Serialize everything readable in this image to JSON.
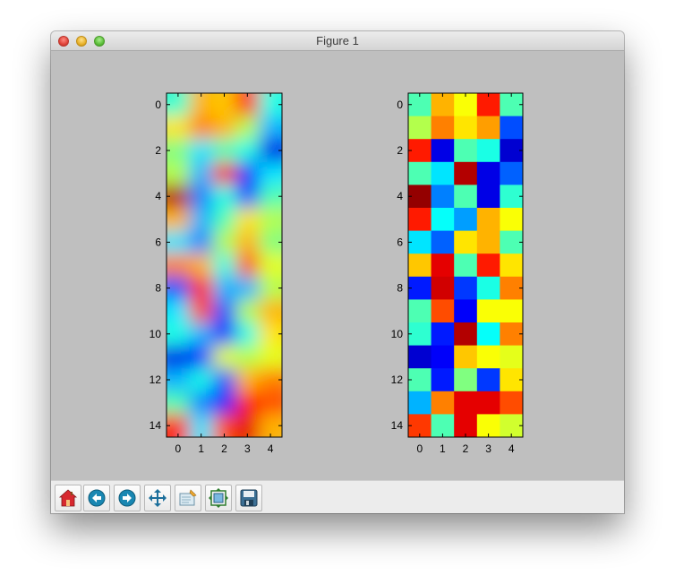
{
  "window": {
    "title": "Figure 1"
  },
  "toolbar": {
    "buttons": [
      {
        "icon": "home-icon"
      },
      {
        "icon": "back-arrow-icon"
      },
      {
        "icon": "forward-arrow-icon"
      },
      {
        "icon": "pan-icon"
      },
      {
        "icon": "zoom-rect-icon"
      },
      {
        "icon": "configure-subplots-icon"
      },
      {
        "icon": "save-icon"
      }
    ]
  },
  "colors": {
    "figure_bg": "#bfbfbf",
    "colormap": "jet"
  },
  "chart_data": [
    {
      "type": "heatmap",
      "interpolation": "smooth",
      "colormap": "jet",
      "x_ticks": [
        "0",
        "1",
        "2",
        "3",
        "4"
      ],
      "y_ticks": [
        "0",
        "2",
        "4",
        "6",
        "8",
        "10",
        "12",
        "14"
      ],
      "values": [
        [
          0.42,
          0.7,
          0.68,
          0.85,
          0.4
        ],
        [
          0.65,
          0.75,
          0.7,
          0.55,
          0.3
        ],
        [
          0.5,
          0.35,
          0.45,
          0.4,
          0.1
        ],
        [
          0.55,
          0.3,
          0.85,
          0.15,
          0.35
        ],
        [
          0.95,
          0.25,
          0.4,
          0.2,
          0.45
        ],
        [
          0.7,
          0.3,
          0.45,
          0.65,
          0.55
        ],
        [
          0.35,
          0.25,
          0.55,
          0.7,
          0.5
        ],
        [
          0.75,
          0.7,
          0.4,
          0.8,
          0.6
        ],
        [
          0.2,
          0.85,
          0.3,
          0.3,
          0.55
        ],
        [
          0.35,
          0.8,
          0.2,
          0.55,
          0.7
        ],
        [
          0.4,
          0.3,
          0.15,
          0.4,
          0.65
        ],
        [
          0.1,
          0.15,
          0.6,
          0.55,
          0.6
        ],
        [
          0.3,
          0.4,
          0.2,
          0.7,
          0.75
        ],
        [
          0.45,
          0.25,
          0.15,
          0.85,
          0.8
        ],
        [
          0.85,
          0.35,
          0.8,
          0.9,
          0.7
        ]
      ]
    },
    {
      "type": "heatmap",
      "interpolation": "nearest",
      "colormap": "jet",
      "x_ticks": [
        "0",
        "1",
        "2",
        "3",
        "4"
      ],
      "y_ticks": [
        "0",
        "2",
        "4",
        "6",
        "8",
        "10",
        "12",
        "14"
      ],
      "values": [
        [
          0.45,
          0.7,
          0.62,
          0.85,
          0.45
        ],
        [
          0.55,
          0.75,
          0.65,
          0.72,
          0.2
        ],
        [
          0.85,
          0.1,
          0.45,
          0.4,
          0.08
        ],
        [
          0.45,
          0.35,
          0.95,
          0.1,
          0.22
        ],
        [
          0.98,
          0.25,
          0.45,
          0.1,
          0.42
        ],
        [
          0.85,
          0.38,
          0.28,
          0.7,
          0.62
        ],
        [
          0.35,
          0.22,
          0.65,
          0.7,
          0.45
        ],
        [
          0.68,
          0.9,
          0.45,
          0.85,
          0.65
        ],
        [
          0.15,
          0.92,
          0.18,
          0.4,
          0.75
        ],
        [
          0.45,
          0.8,
          0.12,
          0.62,
          0.62
        ],
        [
          0.42,
          0.15,
          0.95,
          0.38,
          0.75
        ],
        [
          0.08,
          0.12,
          0.68,
          0.62,
          0.6
        ],
        [
          0.45,
          0.15,
          0.5,
          0.18,
          0.65
        ],
        [
          0.3,
          0.75,
          0.9,
          0.9,
          0.8
        ],
        [
          0.82,
          0.45,
          0.9,
          0.62,
          0.58
        ]
      ]
    }
  ]
}
